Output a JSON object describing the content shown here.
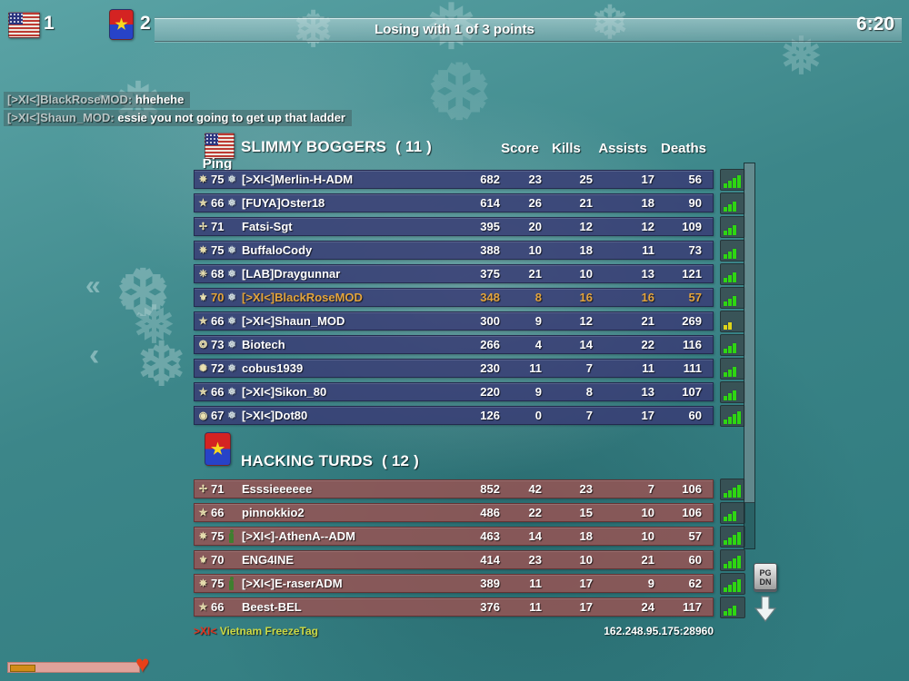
{
  "top_bar": {
    "team1_score": "1",
    "team2_score": "2",
    "status": "Losing with 1 of 3 points",
    "time": "6:20"
  },
  "chat": [
    {
      "name": "[>XI<]BlackRoseMOD:",
      "message": "hhehehe"
    },
    {
      "name": "[>XI<]Shaun_MOD:",
      "message": "essie you not going to get up that ladder"
    }
  ],
  "columns": [
    "Score",
    "Kills",
    "Assists",
    "Deaths",
    "Ping"
  ],
  "teams": [
    {
      "name": "SLIMMY BOGGERS",
      "count": "( 11 )",
      "flag": "us",
      "players": [
        {
          "rank": "75",
          "rank_icon": "✵",
          "frozen": true,
          "soldier": false,
          "name": "[>XI<]Merlin-H-ADM",
          "score": "682",
          "kills": "23",
          "assists": "25",
          "deaths": "17",
          "ping": "56",
          "bars": 4,
          "bar_color": "green",
          "highlight": false
        },
        {
          "rank": "66",
          "rank_icon": "✯",
          "frozen": true,
          "soldier": false,
          "name": "[FUYA]Oster18",
          "score": "614",
          "kills": "26",
          "assists": "21",
          "deaths": "18",
          "ping": "90",
          "bars": 3,
          "bar_color": "green",
          "highlight": false
        },
        {
          "rank": "71",
          "rank_icon": "✢",
          "frozen": false,
          "soldier": false,
          "name": "Fatsi-Sgt",
          "score": "395",
          "kills": "20",
          "assists": "12",
          "deaths": "12",
          "ping": "109",
          "bars": 3,
          "bar_color": "green",
          "highlight": false
        },
        {
          "rank": "75",
          "rank_icon": "✵",
          "frozen": true,
          "soldier": false,
          "name": "BuffaloCody",
          "score": "388",
          "kills": "10",
          "assists": "18",
          "deaths": "11",
          "ping": "73",
          "bars": 3,
          "bar_color": "green",
          "highlight": false
        },
        {
          "rank": "68",
          "rank_icon": "❈",
          "frozen": true,
          "soldier": false,
          "name": "[LAB]Draygunnar",
          "score": "375",
          "kills": "21",
          "assists": "10",
          "deaths": "13",
          "ping": "121",
          "bars": 3,
          "bar_color": "green",
          "highlight": false
        },
        {
          "rank": "70",
          "rank_icon": "⚜",
          "frozen": true,
          "soldier": false,
          "name": "[>XI<]BlackRoseMOD",
          "score": "348",
          "kills": "8",
          "assists": "16",
          "deaths": "16",
          "ping": "57",
          "bars": 3,
          "bar_color": "green",
          "highlight": true
        },
        {
          "rank": "66",
          "rank_icon": "✯",
          "frozen": true,
          "soldier": false,
          "name": "[>XI<]Shaun_MOD",
          "score": "300",
          "kills": "9",
          "assists": "12",
          "deaths": "21",
          "ping": "269",
          "bars": 2,
          "bar_color": "yellow",
          "highlight": false
        },
        {
          "rank": "73",
          "rank_icon": "❂",
          "frozen": true,
          "soldier": false,
          "name": "Biotech",
          "score": "266",
          "kills": "4",
          "assists": "14",
          "deaths": "22",
          "ping": "116",
          "bars": 3,
          "bar_color": "green",
          "highlight": false
        },
        {
          "rank": "72",
          "rank_icon": "✺",
          "frozen": true,
          "soldier": false,
          "name": "cobus1939",
          "score": "230",
          "kills": "11",
          "assists": "7",
          "deaths": "11",
          "ping": "111",
          "bars": 3,
          "bar_color": "green",
          "highlight": false
        },
        {
          "rank": "66",
          "rank_icon": "✯",
          "frozen": true,
          "soldier": false,
          "name": "[>XI<]Sikon_80",
          "score": "220",
          "kills": "9",
          "assists": "8",
          "deaths": "13",
          "ping": "107",
          "bars": 3,
          "bar_color": "green",
          "highlight": false
        },
        {
          "rank": "67",
          "rank_icon": "◉",
          "frozen": true,
          "soldier": false,
          "name": "[>XI<]Dot80",
          "score": "126",
          "kills": "0",
          "assists": "7",
          "deaths": "17",
          "ping": "60",
          "bars": 4,
          "bar_color": "green",
          "highlight": false
        }
      ]
    },
    {
      "name": "HACKING TURDS",
      "count": "( 12 )",
      "flag": "vc",
      "players": [
        {
          "rank": "71",
          "rank_icon": "✢",
          "frozen": false,
          "soldier": false,
          "name": "Esssieeeeee",
          "score": "852",
          "kills": "42",
          "assists": "23",
          "deaths": "7",
          "ping": "106",
          "bars": 4,
          "bar_color": "green",
          "highlight": false
        },
        {
          "rank": "66",
          "rank_icon": "✯",
          "frozen": false,
          "soldier": false,
          "name": "pinnokkio2",
          "score": "486",
          "kills": "22",
          "assists": "15",
          "deaths": "10",
          "ping": "106",
          "bars": 3,
          "bar_color": "green",
          "highlight": false
        },
        {
          "rank": "75",
          "rank_icon": "✵",
          "frozen": false,
          "soldier": true,
          "name": "[>XI<]-AthenA--ADM",
          "score": "463",
          "kills": "14",
          "assists": "18",
          "deaths": "10",
          "ping": "57",
          "bars": 4,
          "bar_color": "green",
          "highlight": false
        },
        {
          "rank": "70",
          "rank_icon": "⚜",
          "frozen": false,
          "soldier": false,
          "name": "ENG4INE",
          "score": "414",
          "kills": "23",
          "assists": "10",
          "deaths": "21",
          "ping": "60",
          "bars": 4,
          "bar_color": "green",
          "highlight": false
        },
        {
          "rank": "75",
          "rank_icon": "✵",
          "frozen": false,
          "soldier": true,
          "name": "[>XI<]E-raserADM",
          "score": "389",
          "kills": "11",
          "assists": "17",
          "deaths": "9",
          "ping": "62",
          "bars": 4,
          "bar_color": "green",
          "highlight": false
        },
        {
          "rank": "66",
          "rank_icon": "✯",
          "frozen": false,
          "soldier": false,
          "name": "Beest-BEL",
          "score": "376",
          "kills": "11",
          "assists": "17",
          "deaths": "24",
          "ping": "117",
          "bars": 3,
          "bar_color": "green",
          "highlight": false
        }
      ]
    }
  ],
  "footer": {
    "clan": ">XI<",
    "server_name": " Vietnam FreezeTag",
    "address": "162.248.95.175:28960"
  },
  "page_key": {
    "line1": "PG",
    "line2": "DN"
  },
  "colors": {
    "team1_row": "#383c74",
    "team2_row": "#965353",
    "highlight_text": "#e3a43c",
    "ping_green": "#2ed612",
    "ping_yellow": "#ded41a",
    "server_name_color": "#ccd844",
    "clan_color": "#e23420"
  }
}
